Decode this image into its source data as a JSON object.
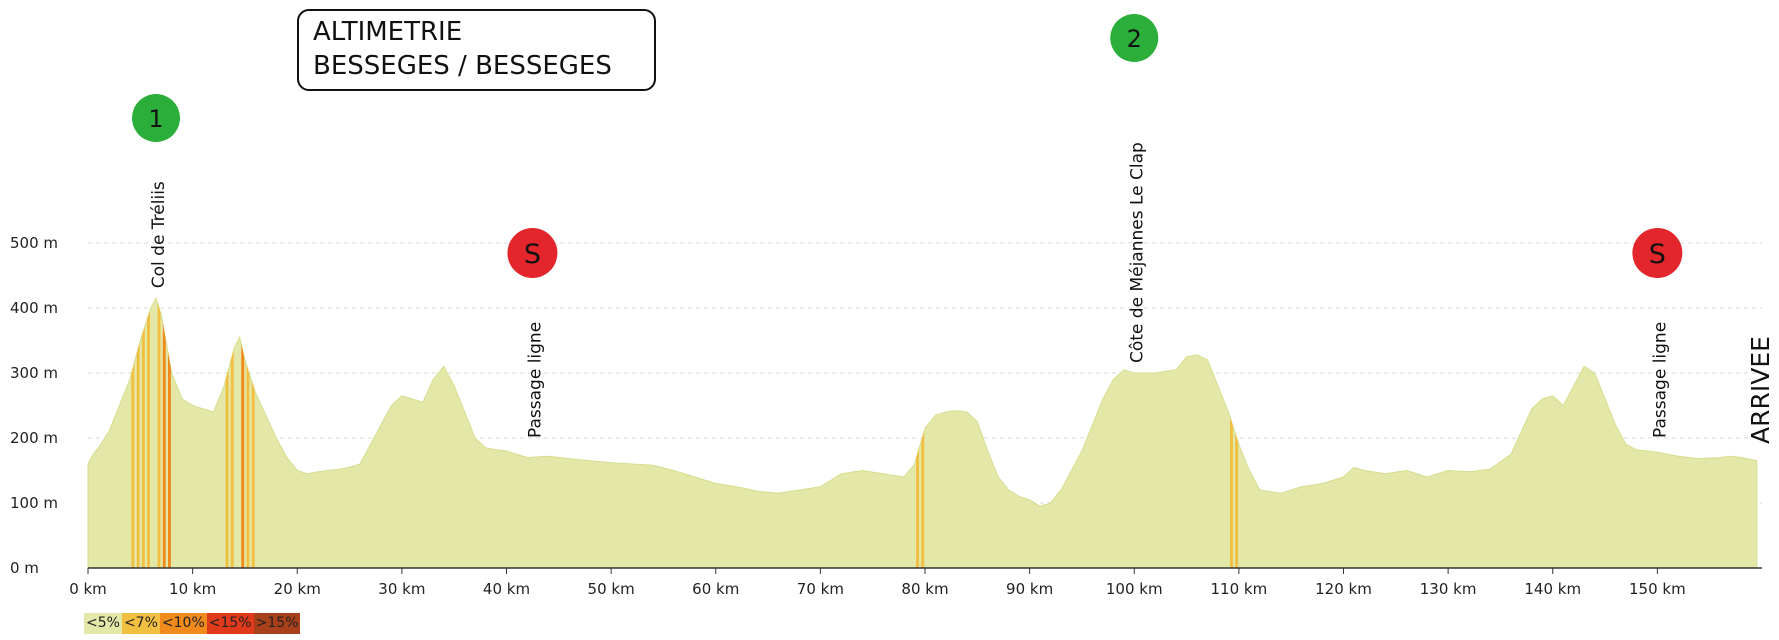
{
  "title": {
    "line1": "ALTIMETRIE",
    "line2": "BESSEGES / BESSEGES"
  },
  "chart_data": {
    "type": "area",
    "xlabel": "",
    "ylabel": "",
    "xlim": [
      0,
      160
    ],
    "ylim": [
      0,
      500
    ],
    "x_ticks": [
      0,
      10,
      20,
      30,
      40,
      50,
      60,
      70,
      80,
      90,
      100,
      110,
      120,
      130,
      140,
      150
    ],
    "x_tick_labels": [
      "0 km",
      "10 km",
      "20 km",
      "30 km",
      "40 km",
      "50 km",
      "60 km",
      "70 km",
      "80 km",
      "90 km",
      "100 km",
      "110 km",
      "120 km",
      "130 km",
      "140 km",
      "150 km"
    ],
    "y_ticks": [
      0,
      100,
      200,
      300,
      400,
      500
    ],
    "y_tick_labels": [
      "0 m",
      "100 m",
      "200 m",
      "300 m",
      "400 m",
      "500 m"
    ],
    "grid": "horizontal dashed",
    "fill_color": "#e3e8a8",
    "profile": {
      "x": [
        0,
        0.5,
        1,
        2,
        3,
        4,
        5,
        6,
        6.5,
        7,
        8,
        9,
        10,
        11,
        12,
        13,
        14,
        14.5,
        15,
        16,
        17,
        18,
        19,
        20,
        21,
        22,
        23,
        24,
        25,
        26,
        27,
        28,
        29,
        30,
        31,
        32,
        33,
        34,
        35,
        36,
        37,
        38,
        39,
        40,
        42,
        44,
        46,
        48,
        50,
        52,
        54,
        56,
        58,
        60,
        62,
        64,
        66,
        68,
        70,
        72,
        74,
        76,
        78,
        79,
        80,
        81,
        82,
        83,
        84,
        85,
        86,
        87,
        88,
        89,
        90,
        91,
        92,
        93,
        94,
        95,
        96,
        97,
        98,
        99,
        100,
        102,
        104,
        105,
        106,
        107,
        108,
        109,
        110,
        111,
        112,
        114,
        116,
        118,
        120,
        121,
        122,
        124,
        126,
        128,
        130,
        132,
        134,
        136,
        137,
        138,
        139,
        140,
        141,
        142,
        143,
        144,
        145,
        146,
        147,
        148,
        150,
        152,
        154,
        156,
        157,
        158,
        159.5
      ],
      "y": [
        160,
        175,
        185,
        210,
        250,
        290,
        350,
        400,
        415,
        390,
        300,
        260,
        250,
        245,
        240,
        280,
        340,
        355,
        320,
        270,
        235,
        200,
        170,
        150,
        145,
        148,
        150,
        152,
        155,
        160,
        190,
        220,
        250,
        265,
        260,
        255,
        290,
        310,
        280,
        240,
        200,
        185,
        182,
        180,
        170,
        172,
        168,
        165,
        162,
        160,
        158,
        150,
        140,
        130,
        125,
        118,
        115,
        120,
        125,
        145,
        150,
        145,
        140,
        160,
        215,
        235,
        240,
        242,
        240,
        225,
        180,
        140,
        120,
        110,
        105,
        95,
        100,
        120,
        150,
        180,
        220,
        260,
        290,
        305,
        300,
        300,
        305,
        325,
        328,
        320,
        280,
        240,
        190,
        150,
        120,
        115,
        125,
        130,
        140,
        155,
        150,
        145,
        150,
        140,
        150,
        148,
        152,
        175,
        210,
        245,
        260,
        265,
        250,
        280,
        310,
        300,
        260,
        220,
        190,
        182,
        178,
        172,
        168,
        170,
        172,
        170,
        165
      ]
    },
    "gradient_legend": [
      {
        "label": "<5%",
        "color": "#e3e8a8"
      },
      {
        "label": "<7%",
        "color": "#f1c040"
      },
      {
        "label": "<10%",
        "color": "#f08a1a"
      },
      {
        "label": "<15%",
        "color": "#e03a1a"
      },
      {
        "label": ">15%",
        "color": "#a8401a"
      }
    ],
    "climbs": [
      {
        "number": "1",
        "name": "Col de Tréliis",
        "km": 6.5,
        "color": "#2bae3a"
      },
      {
        "number": "2",
        "name": "Côte de Méjannes Le Clap",
        "km": 100,
        "color": "#2bae3a"
      }
    ],
    "sprints": [
      {
        "symbol": "S",
        "name": "Passage ligne",
        "km": 42,
        "color": "#e3262b"
      },
      {
        "symbol": "S",
        "name": "Passage ligne",
        "km": 150,
        "color": "#e3262b"
      }
    ],
    "finish_label": "ARRIVEE"
  }
}
